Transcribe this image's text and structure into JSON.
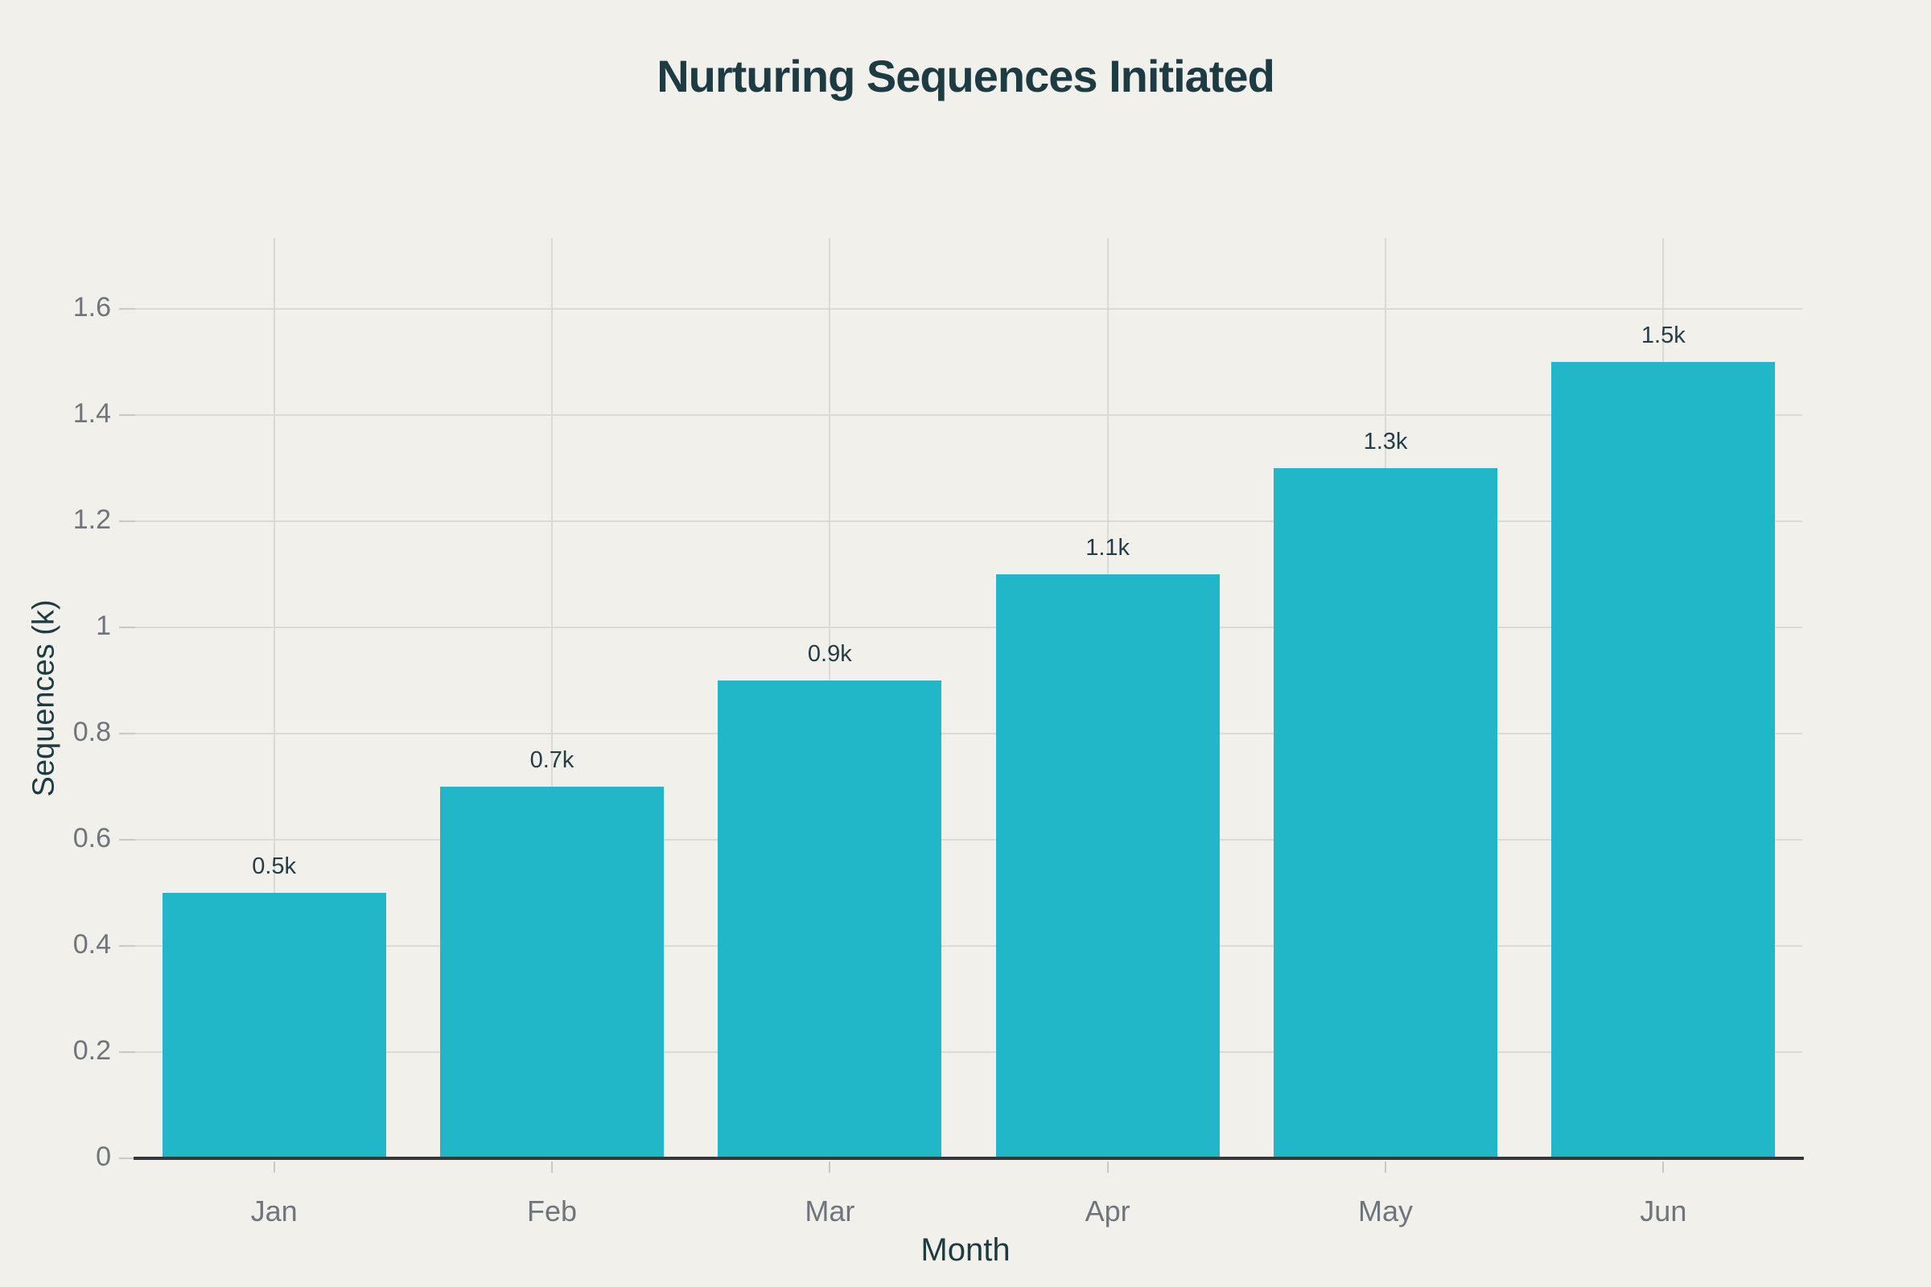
{
  "chart_data": {
    "type": "bar",
    "title": "Nurturing Sequences Initiated",
    "xlabel": "Month",
    "ylabel": "Sequences (k)",
    "categories": [
      "Jan",
      "Feb",
      "Mar",
      "Apr",
      "May",
      "Jun"
    ],
    "values": [
      0.5,
      0.7,
      0.9,
      1.1,
      1.3,
      1.5
    ],
    "bar_labels": [
      "0.5k",
      "0.7k",
      "0.9k",
      "1.1k",
      "1.3k",
      "1.5k"
    ],
    "yticks": [
      0,
      0.2,
      0.4,
      0.6,
      0.8,
      1,
      1.2,
      1.4,
      1.6
    ],
    "ytick_labels": [
      "0",
      "0.2",
      "0.4",
      "0.6",
      "0.8",
      "1",
      "1.2",
      "1.4",
      "1.6"
    ],
    "ylim": [
      0,
      1.73
    ],
    "grid": true,
    "legend": false,
    "colors": {
      "background": "#f1f0ea",
      "bar": "#22b6c9",
      "gridline": "#dbdad3",
      "axis_line": "#35393c",
      "tick_mark": "#c9c8c1",
      "tick_label": "#6e757d",
      "title": "#1c3b43",
      "axis_title": "#1c3b43",
      "value_label": "#233e49"
    }
  }
}
